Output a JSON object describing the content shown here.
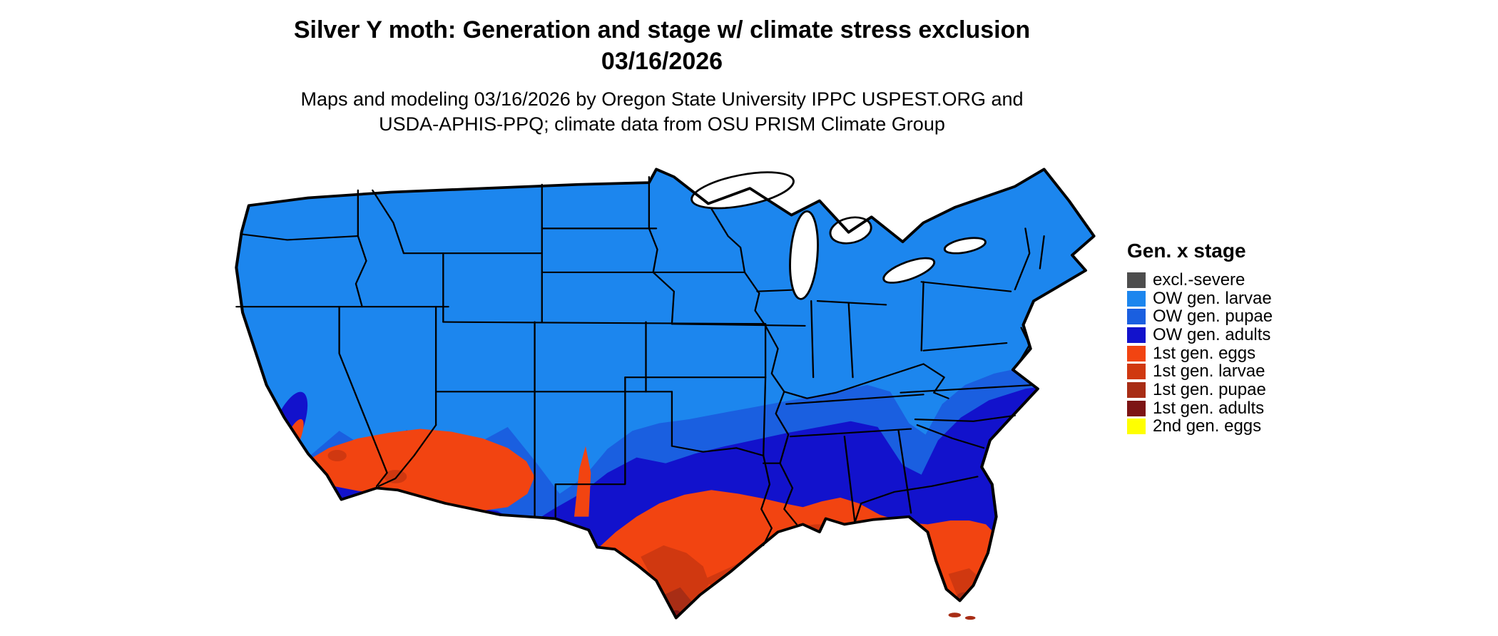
{
  "header": {
    "title_line1": "Silver Y moth: Generation and stage w/ climate stress exclusion",
    "title_line2": "03/16/2026",
    "subtitle_line1": "Maps and modeling 03/16/2026 by Oregon State University IPPC USPEST.ORG and",
    "subtitle_line2": "USDA-APHIS-PPQ; climate data from OSU PRISM Climate Group"
  },
  "legend": {
    "title": "Gen. x stage",
    "items": [
      {
        "key": "excl_severe",
        "label": "excl.-severe",
        "color": "#4d4d4d"
      },
      {
        "key": "ow_larvae",
        "label": "OW gen. larvae",
        "color": "#1c86ee"
      },
      {
        "key": "ow_pupae",
        "label": "OW gen. pupae",
        "color": "#1a5fe0"
      },
      {
        "key": "ow_adults",
        "label": "OW gen. adults",
        "color": "#1212cc"
      },
      {
        "key": "gen1_eggs",
        "label": "1st gen. eggs",
        "color": "#f24411"
      },
      {
        "key": "gen1_larvae",
        "label": "1st gen. larvae",
        "color": "#d03810"
      },
      {
        "key": "gen1_pupae",
        "label": "1st gen. pupae",
        "color": "#a82d15"
      },
      {
        "key": "gen1_adults",
        "label": "1st gen. adults",
        "color": "#7d1414"
      },
      {
        "key": "gen2_eggs",
        "label": "2nd gen. eggs",
        "color": "#ffff00"
      }
    ]
  },
  "map": {
    "region": "Contiguous United States",
    "zone_summary": [
      {
        "stage": "OW gen. larvae",
        "extent": "northern and central US"
      },
      {
        "stage": "OW gen. pupae",
        "extent": "band across southern plains, mid-South and mid-Atlantic coast"
      },
      {
        "stage": "OW gen. adults",
        "extent": "Deep South, central Texas, southern New Mexico, southern California"
      },
      {
        "stage": "1st gen. eggs",
        "extent": "south Texas, Gulf Coast, Florida, southern Arizona and southeastern California deserts"
      },
      {
        "stage": "1st gen. larvae",
        "extent": "lower Texas coast, Louisiana delta, south Florida"
      },
      {
        "stage": "1st gen. pupae",
        "extent": "southern tip of Texas and Florida Keys"
      }
    ]
  }
}
